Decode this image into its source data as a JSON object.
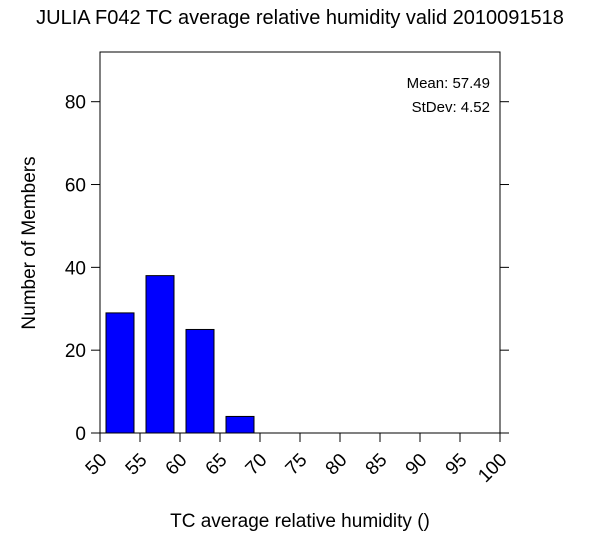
{
  "chart_data": {
    "type": "bar",
    "title": "JULIA F042 TC average relative humidity valid 2010091518",
    "xlabel": "TC average relative humidity ()",
    "ylabel": "Number of Members",
    "xlim": [
      50,
      100
    ],
    "ylim": [
      0,
      90
    ],
    "x_ticks": [
      50,
      55,
      60,
      65,
      70,
      75,
      80,
      85,
      90,
      95,
      100
    ],
    "y_ticks": [
      0,
      20,
      40,
      60,
      80
    ],
    "bar_width": 3.5,
    "bars": [
      {
        "x": 52.5,
        "value": 29
      },
      {
        "x": 57.5,
        "value": 38
      },
      {
        "x": 62.5,
        "value": 25
      },
      {
        "x": 67.5,
        "value": 4
      }
    ],
    "bar_color": "#0000FF",
    "grid": false,
    "annotations": {
      "mean": "Mean: 57.49",
      "stdev": "StDev: 4.52"
    }
  }
}
